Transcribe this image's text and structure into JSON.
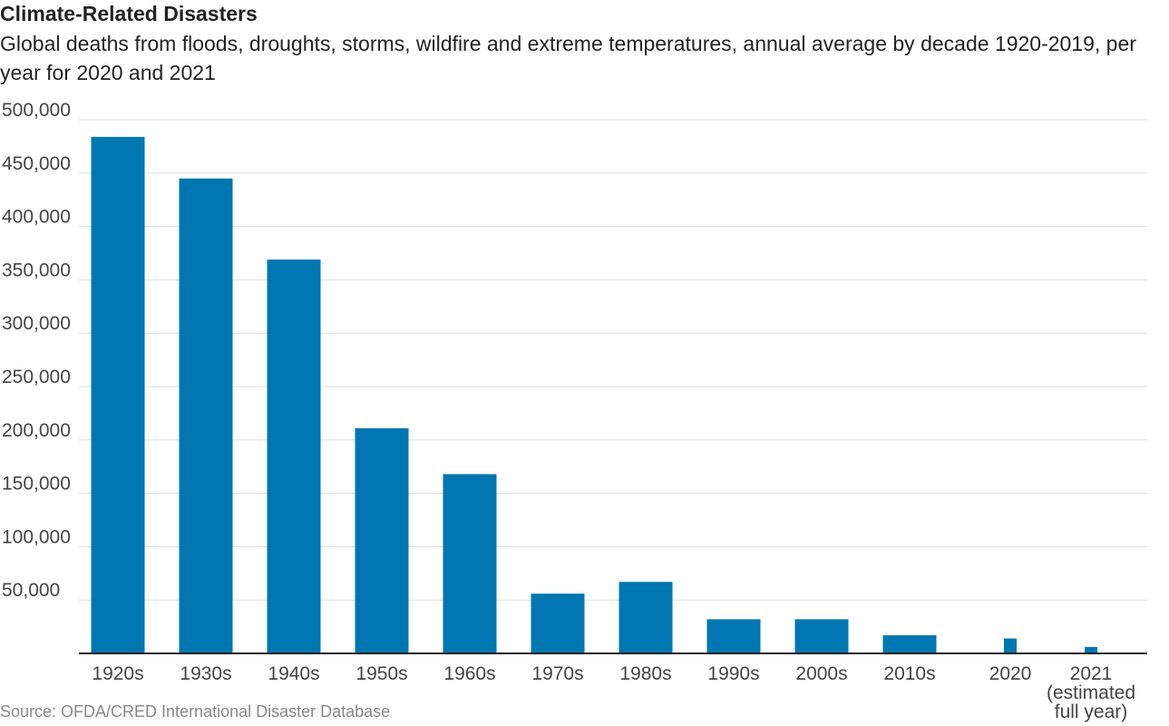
{
  "title": "Climate-Related Disasters",
  "subtitle": "Global deaths from floods, droughts, storms, wildfire and extreme temperatures, annual average by decade 1920-2019, per year for 2020 and 2021",
  "source": "Source: OFDA/CRED International Disaster Database",
  "colors": {
    "bar": "#0077b0",
    "grid": "#dddddd",
    "axis": "#222222",
    "text": "#222222",
    "tick_text": "#444444",
    "source_text": "#888888"
  },
  "chart_data": {
    "type": "bar",
    "title": "Climate-Related Disasters",
    "subtitle": "Global deaths from floods, droughts, storms, wildfire and extreme temperatures, annual average by decade 1920-2019, per year for 2020 and 2021",
    "categories": [
      "1920s",
      "1930s",
      "1940s",
      "1950s",
      "1960s",
      "1970s",
      "1980s",
      "1990s",
      "2000s",
      "2010s",
      "2020",
      "2021"
    ],
    "category_labels": [
      [
        "1920s"
      ],
      [
        "1930s"
      ],
      [
        "1940s"
      ],
      [
        "1950s"
      ],
      [
        "1960s"
      ],
      [
        "1970s"
      ],
      [
        "1980s"
      ],
      [
        "1990s"
      ],
      [
        "2000s"
      ],
      [
        "2010s"
      ],
      [
        "2020"
      ],
      [
        "2021",
        "(estimated",
        "full year)"
      ]
    ],
    "values": [
      484000,
      445000,
      369000,
      211000,
      168000,
      56000,
      67000,
      32000,
      32000,
      17000,
      14000,
      6000
    ],
    "ylim": [
      0,
      500000
    ],
    "yticks": [
      50000,
      100000,
      150000,
      200000,
      250000,
      300000,
      350000,
      400000,
      450000,
      500000
    ],
    "ytick_labels": [
      "50,000",
      "100,000",
      "150,000",
      "200,000",
      "250,000",
      "300,000",
      "350,000",
      "400,000",
      "450,000",
      "500,000"
    ],
    "grid": true,
    "legend": "none"
  }
}
